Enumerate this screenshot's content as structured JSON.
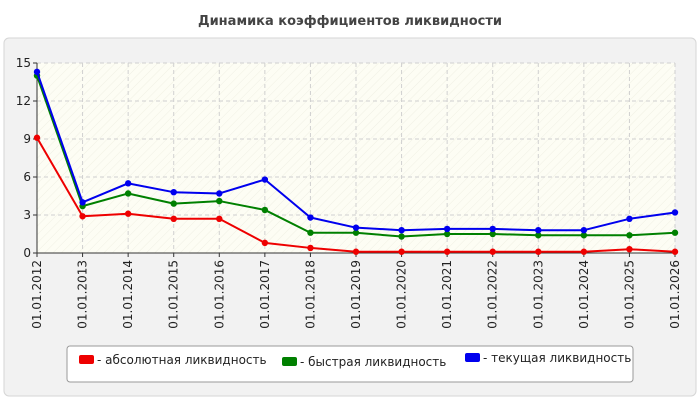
{
  "chart_data": {
    "type": "line",
    "title": "Динамика коэффициентов ликвидности",
    "xlabel": "",
    "ylabel": "",
    "ylim": [
      0,
      15
    ],
    "yticks": [
      "0",
      "3",
      "6",
      "9",
      "12",
      "15"
    ],
    "grid": true,
    "legend_position": "bottom",
    "categories": [
      "01.01.2012",
      "01.01.2013",
      "01.01.2014",
      "01.01.2015",
      "01.01.2016",
      "01.01.2017",
      "01.01.2018",
      "01.01.2019",
      "01.01.2020",
      "01.01.2021",
      "01.01.2022",
      "01.01.2023",
      "01.01.2024",
      "01.01.2025",
      "01.01.2026"
    ],
    "series": [
      {
        "name": "- абсолютная ликвидность",
        "color": "#ee0000",
        "values": [
          9.1,
          2.9,
          3.1,
          2.7,
          2.7,
          0.8,
          0.4,
          0.1,
          0.1,
          0.1,
          0.1,
          0.1,
          0.1,
          0.3,
          0.1
        ]
      },
      {
        "name": "- быстрая ликвидность",
        "color": "#008000",
        "values": [
          14.0,
          3.7,
          4.7,
          3.9,
          4.1,
          3.4,
          1.6,
          1.6,
          1.3,
          1.5,
          1.5,
          1.4,
          1.4,
          1.4,
          1.6
        ]
      },
      {
        "name": "- текущая ликвидность",
        "color": "#0000ee",
        "values": [
          14.3,
          4.0,
          5.5,
          4.8,
          4.7,
          5.8,
          2.8,
          2.0,
          1.8,
          1.9,
          1.9,
          1.8,
          1.8,
          2.7,
          3.2
        ]
      }
    ]
  }
}
